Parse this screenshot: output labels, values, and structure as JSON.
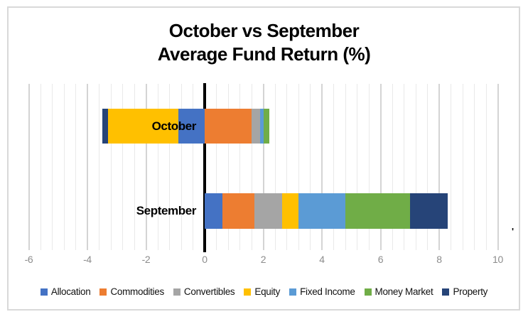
{
  "title": {
    "line1": "October vs September",
    "line2": "Average Fund Return (%)"
  },
  "chart_data": {
    "type": "bar",
    "orientation": "horizontal",
    "stacked": true,
    "title": "October vs September Average Fund Return (%)",
    "categories": [
      "October",
      "September"
    ],
    "series": [
      {
        "name": "Allocation",
        "color": "#4472C4",
        "values": [
          -0.9,
          0.6
        ]
      },
      {
        "name": "Commodities",
        "color": "#ED7D31",
        "values": [
          1.6,
          1.1
        ]
      },
      {
        "name": "Convertibles",
        "color": "#A5A5A5",
        "values": [
          0.3,
          0.95
        ]
      },
      {
        "name": "Equity",
        "color": "#FFC000",
        "values": [
          -2.4,
          0.55
        ]
      },
      {
        "name": "Fixed Income",
        "color": "#5B9BD5",
        "values": [
          0.1,
          1.6
        ]
      },
      {
        "name": "Money Market",
        "color": "#70AD47",
        "values": [
          0.2,
          2.2
        ]
      },
      {
        "name": "Property",
        "color": "#264478",
        "values": [
          -0.2,
          1.3
        ]
      }
    ],
    "xlim": [
      -6,
      10
    ],
    "x_major_unit": 2,
    "x_minor_unit": 0.4,
    "x_tick_labels": [
      "-6",
      "-4",
      "-2",
      "0",
      "2",
      "4",
      "6",
      "8",
      "10"
    ],
    "grid": "vertical minor + major gridlines, zero axis emphasized black",
    "legend_position": "bottom"
  },
  "colors": {
    "minor_gridline": "#E9E9E9",
    "major_gridline": "#D4D4D4",
    "zero_axis": "#000000",
    "tick_label": "#8C8C8C",
    "chart_border": "#D9D9D9",
    "background": "#FFFFFF"
  },
  "stray_mark": "'"
}
